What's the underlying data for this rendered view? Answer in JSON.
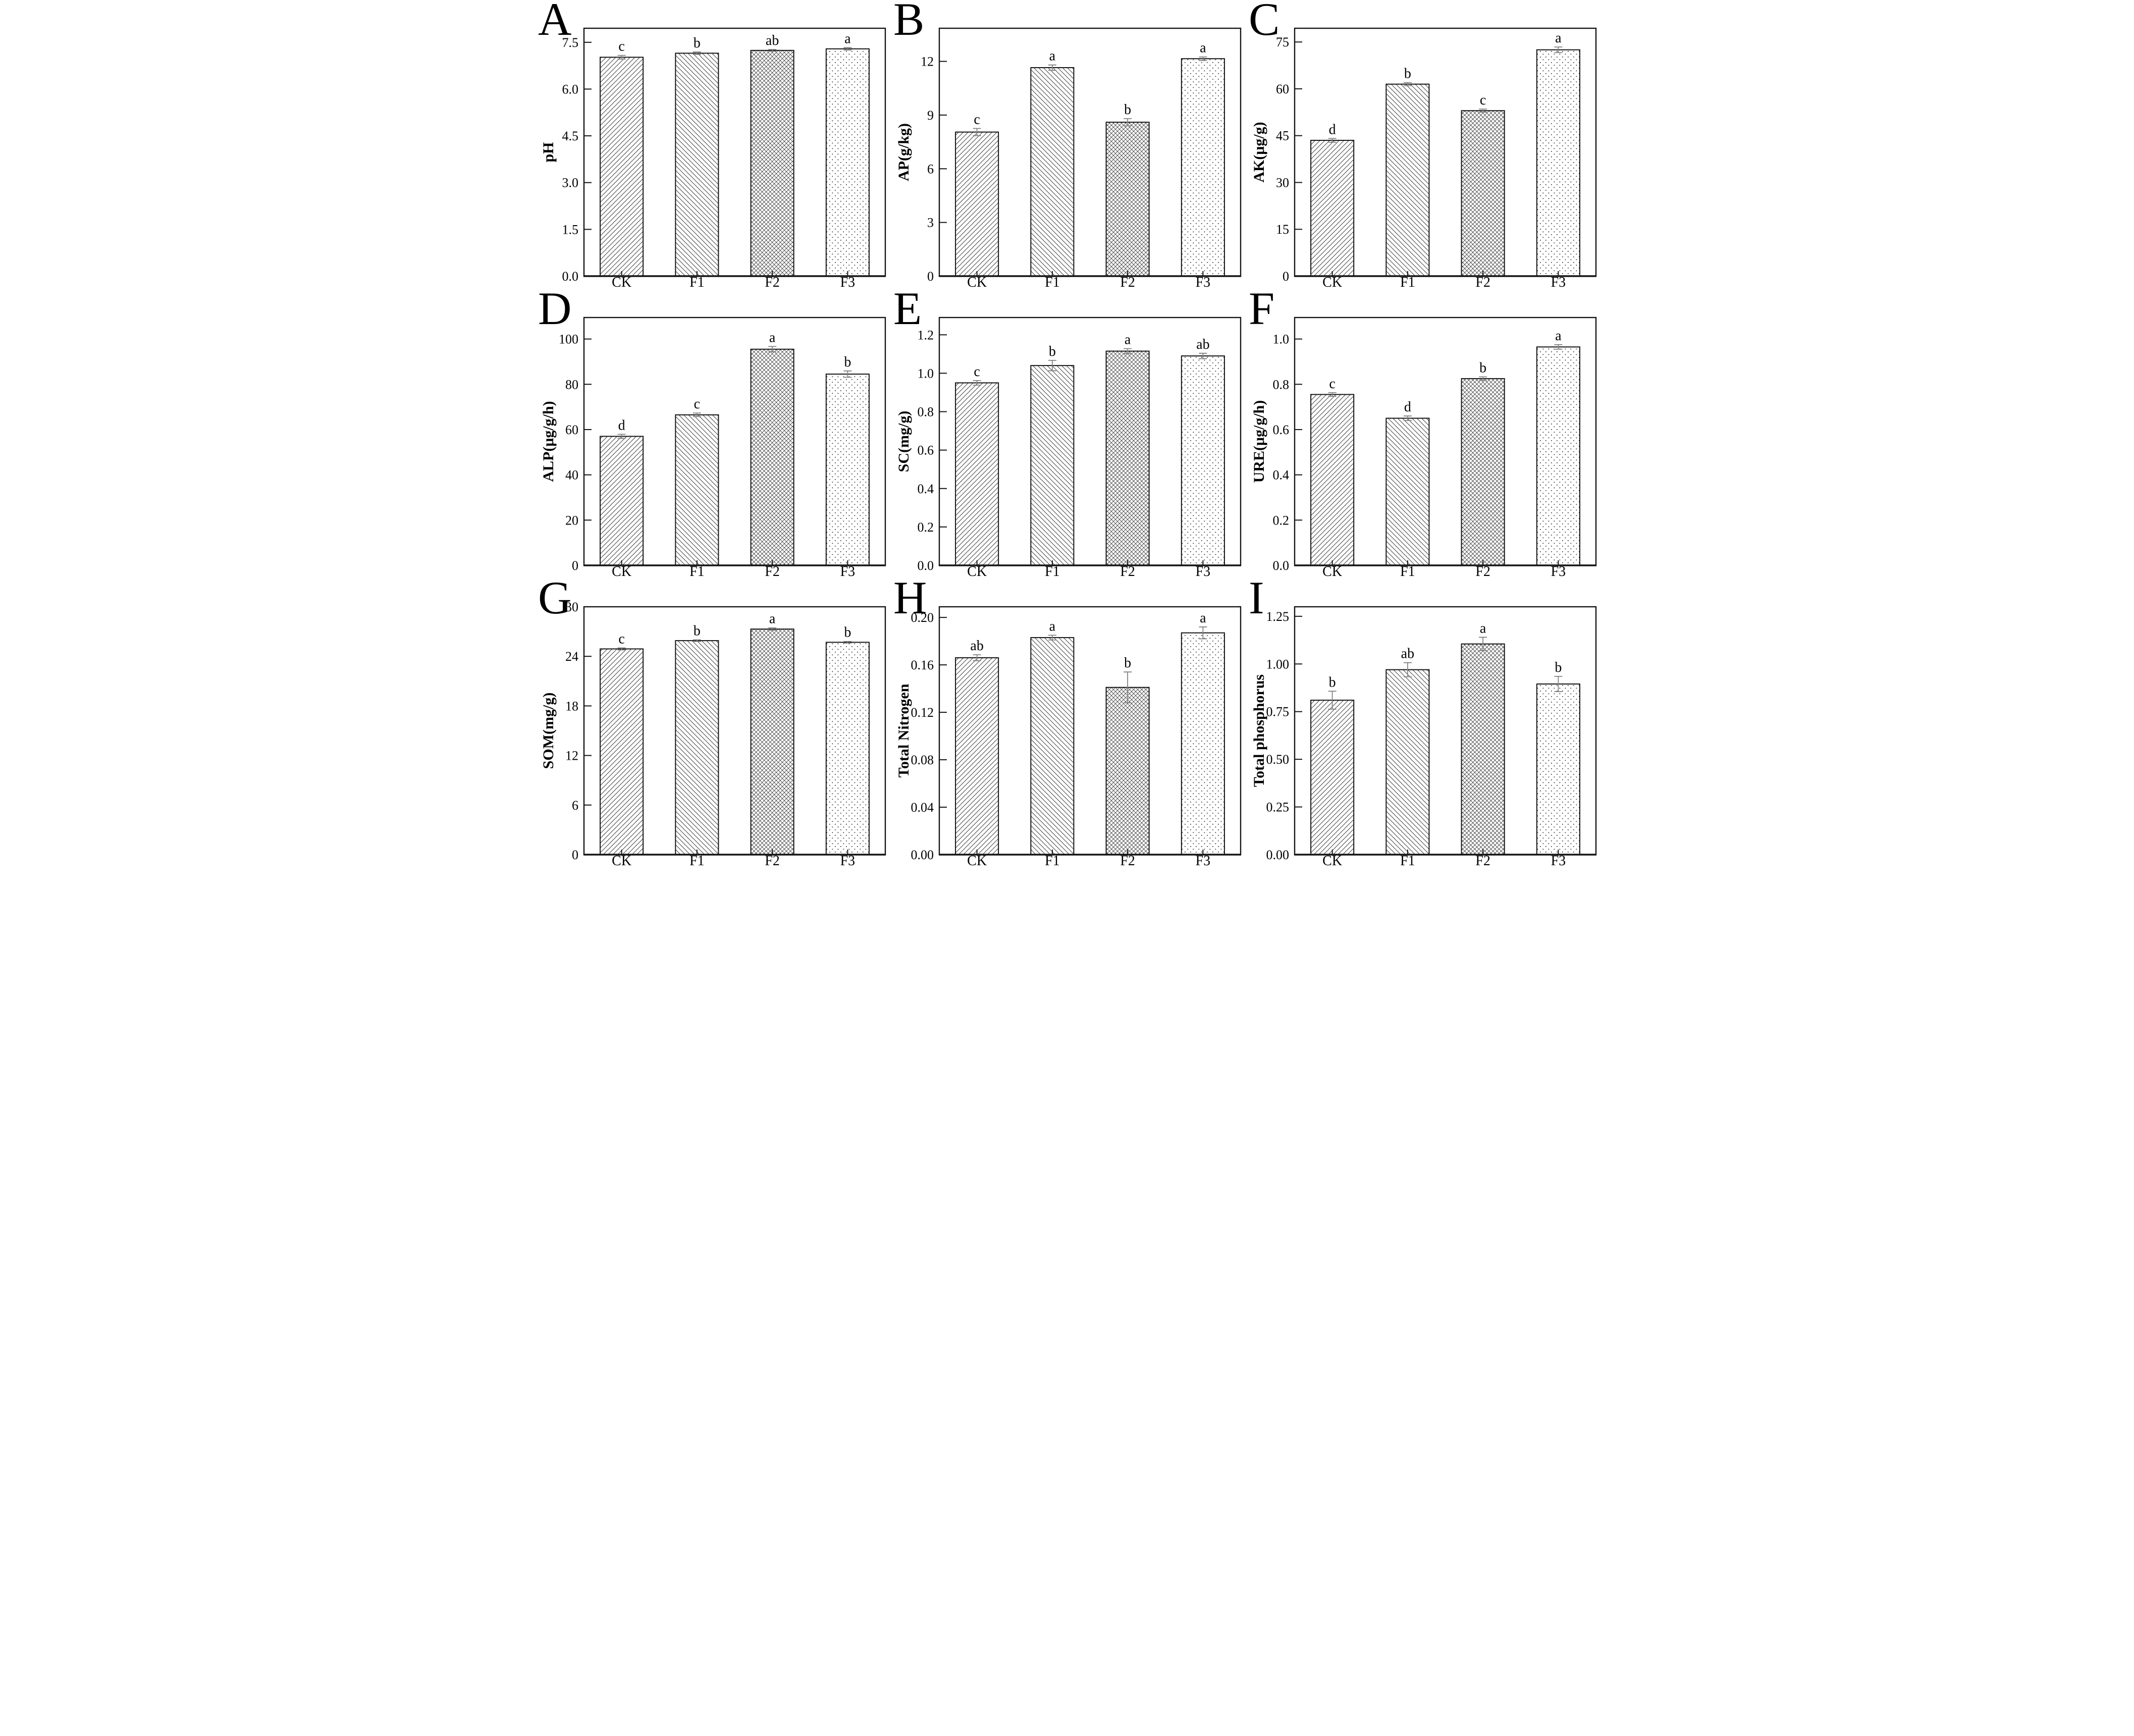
{
  "figure": {
    "background": "#ffffff",
    "panels": [
      "A",
      "B",
      "C",
      "D",
      "E",
      "F",
      "G",
      "H",
      "I"
    ],
    "treatment_groups": [
      "CK",
      "F1",
      "F2",
      "F3"
    ],
    "pattern_legend": {
      "CK": "diagonal-up-hatch",
      "F1": "diagonal-down-hatch",
      "F2": "crosshatch",
      "F3": "dots"
    },
    "accent_color": "#141414",
    "error_bar_color": "#828282"
  },
  "chart_data": [
    {
      "panel": "A",
      "type": "bar",
      "ylabel": "pH",
      "categories": [
        "CK",
        "F1",
        "F2",
        "F3"
      ],
      "values": [
        7.02,
        7.15,
        7.24,
        7.29
      ],
      "errors": [
        0.06,
        0.04,
        0.03,
        0.04
      ],
      "sig_letters": [
        "c",
        "b",
        "ab",
        "a"
      ],
      "yticks": [
        0.0,
        1.5,
        3.0,
        4.5,
        6.0,
        7.5
      ],
      "ytick_labels": [
        "0.0",
        "1.5",
        "3.0",
        "4.5",
        "6.0",
        "7.5"
      ],
      "ylim": [
        0,
        7.95
      ],
      "patterns": [
        "diag-up",
        "diag-down",
        "crosshatch",
        "dots"
      ]
    },
    {
      "panel": "B",
      "type": "bar",
      "ylabel": "AP(g/kg)",
      "categories": [
        "CK",
        "F1",
        "F2",
        "F3"
      ],
      "values": [
        8.05,
        11.65,
        8.6,
        12.15
      ],
      "errors": [
        0.2,
        0.15,
        0.2,
        0.1
      ],
      "sig_letters": [
        "c",
        "a",
        "b",
        "a"
      ],
      "yticks": [
        0,
        3,
        6,
        9,
        12
      ],
      "ytick_labels": [
        "0",
        "3",
        "6",
        "9",
        "12"
      ],
      "ylim": [
        0,
        13.85
      ],
      "patterns": [
        "diag-up",
        "diag-down",
        "crosshatch",
        "dots"
      ]
    },
    {
      "panel": "C",
      "type": "bar",
      "ylabel": "AK(μg/g)",
      "categories": [
        "CK",
        "F1",
        "F2",
        "F3"
      ],
      "values": [
        43.5,
        61.5,
        53.0,
        72.5
      ],
      "errors": [
        0.6,
        0.5,
        0.5,
        0.9
      ],
      "sig_letters": [
        "d",
        "b",
        "c",
        "a"
      ],
      "yticks": [
        0,
        15,
        30,
        45,
        60,
        75
      ],
      "ytick_labels": [
        "0",
        "15",
        "30",
        "45",
        "60",
        "75"
      ],
      "ylim": [
        0,
        79.4
      ],
      "patterns": [
        "diag-up",
        "diag-down",
        "crosshatch",
        "dots"
      ]
    },
    {
      "panel": "D",
      "type": "bar",
      "ylabel": "ALP(μg/g/h)",
      "categories": [
        "CK",
        "F1",
        "F2",
        "F3"
      ],
      "values": [
        57.0,
        66.5,
        95.5,
        84.5
      ],
      "errors": [
        0.9,
        0.8,
        1.2,
        1.4
      ],
      "sig_letters": [
        "d",
        "c",
        "a",
        "b"
      ],
      "yticks": [
        0,
        20,
        40,
        60,
        80,
        100
      ],
      "ytick_labels": [
        "0",
        "20",
        "40",
        "60",
        "80",
        "100"
      ],
      "ylim": [
        0,
        109.5
      ],
      "patterns": [
        "diag-up",
        "diag-down",
        "crosshatch",
        "dots"
      ]
    },
    {
      "panel": "E",
      "type": "bar",
      "ylabel": "SC(mg/g)",
      "categories": [
        "CK",
        "F1",
        "F2",
        "F3"
      ],
      "values": [
        0.95,
        1.04,
        1.115,
        1.09
      ],
      "errors": [
        0.012,
        0.027,
        0.013,
        0.014
      ],
      "sig_letters": [
        "c",
        "b",
        "a",
        "ab"
      ],
      "yticks": [
        0.0,
        0.2,
        0.4,
        0.6,
        0.8,
        1.0,
        1.2
      ],
      "ytick_labels": [
        "0.0",
        "0.2",
        "0.4",
        "0.6",
        "0.8",
        "1.0",
        "1.2"
      ],
      "ylim": [
        0,
        1.29
      ],
      "patterns": [
        "diag-up",
        "diag-down",
        "crosshatch",
        "dots"
      ]
    },
    {
      "panel": "F",
      "type": "bar",
      "ylabel": "URE(μg/g/h)",
      "categories": [
        "CK",
        "F1",
        "F2",
        "F3"
      ],
      "values": [
        0.755,
        0.65,
        0.825,
        0.965
      ],
      "errors": [
        0.008,
        0.01,
        0.008,
        0.01
      ],
      "sig_letters": [
        "c",
        "d",
        "b",
        "a"
      ],
      "yticks": [
        0.0,
        0.2,
        0.4,
        0.6,
        0.8,
        1.0
      ],
      "ytick_labels": [
        "0.0",
        "0.2",
        "0.4",
        "0.6",
        "0.8",
        "1.0"
      ],
      "ylim": [
        0,
        1.095
      ],
      "patterns": [
        "diag-up",
        "diag-down",
        "crosshatch",
        "dots"
      ]
    },
    {
      "panel": "G",
      "type": "bar",
      "ylabel": "SOM(mg/g)",
      "categories": [
        "CK",
        "F1",
        "F2",
        "F3"
      ],
      "values": [
        24.9,
        25.9,
        27.3,
        25.7
      ],
      "errors": [
        0.12,
        0.1,
        0.15,
        0.1
      ],
      "sig_letters": [
        "c",
        "b",
        "a",
        "b"
      ],
      "yticks": [
        0,
        6,
        12,
        18,
        24,
        30
      ],
      "ytick_labels": [
        "0",
        "6",
        "12",
        "18",
        "24",
        "30"
      ],
      "ylim": [
        0,
        30
      ],
      "patterns": [
        "diag-up",
        "diag-down",
        "crosshatch",
        "dots"
      ]
    },
    {
      "panel": "H",
      "type": "bar",
      "ylabel": "Total Nitrogen",
      "categories": [
        "CK",
        "F1",
        "F2",
        "F3"
      ],
      "values": [
        0.166,
        0.183,
        0.141,
        0.187
      ],
      "errors": [
        0.0025,
        0.002,
        0.013,
        0.005
      ],
      "sig_letters": [
        "ab",
        "a",
        "b",
        "a"
      ],
      "yticks": [
        0.0,
        0.04,
        0.08,
        0.12,
        0.16,
        0.2
      ],
      "ytick_labels": [
        "0.00",
        "0.04",
        "0.08",
        "0.12",
        "0.16",
        "0.20"
      ],
      "ylim": [
        0,
        0.209
      ],
      "patterns": [
        "diag-up",
        "diag-down",
        "crosshatch",
        "dots"
      ]
    },
    {
      "panel": "I",
      "type": "bar",
      "ylabel": "Total phosphorus",
      "categories": [
        "CK",
        "F1",
        "F2",
        "F3"
      ],
      "values": [
        0.81,
        0.97,
        1.105,
        0.895
      ],
      "errors": [
        0.047,
        0.037,
        0.035,
        0.04
      ],
      "sig_letters": [
        "b",
        "ab",
        "a",
        "b"
      ],
      "yticks": [
        0.0,
        0.25,
        0.5,
        0.75,
        1.0,
        1.25
      ],
      "ytick_labels": [
        "0.00",
        "0.25",
        "0.50",
        "0.75",
        "1.00",
        "1.25"
      ],
      "ylim": [
        0,
        1.3
      ],
      "patterns": [
        "diag-up",
        "diag-down",
        "crosshatch",
        "dots"
      ]
    }
  ]
}
